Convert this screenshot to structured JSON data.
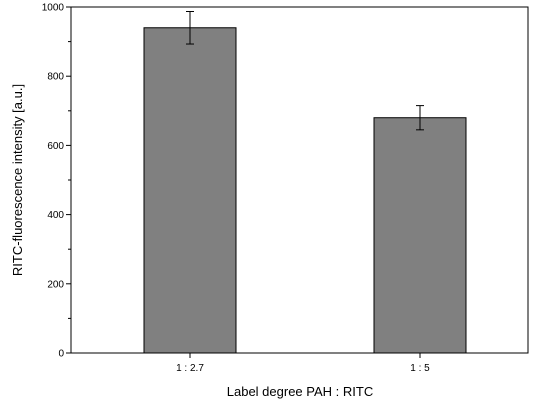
{
  "chart_data": {
    "type": "bar",
    "title": "",
    "xlabel": "Label degree PAH : RITC",
    "ylabel": "RITC-fluorescence intensity [a.u.]",
    "categories": [
      "1 : 2.7",
      "1 : 5"
    ],
    "values": [
      940,
      680
    ],
    "errors": [
      47,
      35
    ],
    "ylim": [
      0,
      1000
    ],
    "yticks": [
      0,
      200,
      400,
      600,
      800,
      1000
    ],
    "ytick_labels": [
      "0",
      "200",
      "400",
      "600",
      "800",
      "1000"
    ],
    "bar_color": "#808080",
    "bar_edge_color": "#000000",
    "grid": false,
    "legend": "none"
  }
}
